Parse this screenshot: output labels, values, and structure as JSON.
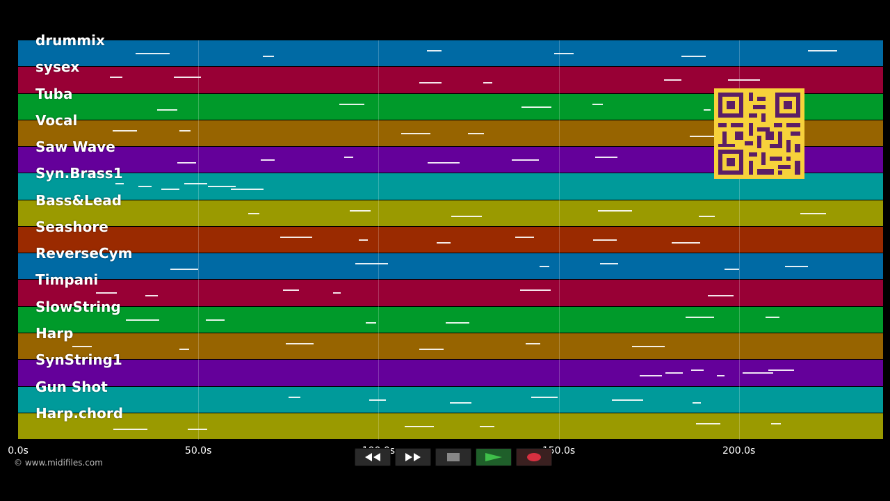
{
  "player": {
    "tracks": [
      {
        "name": "drummix",
        "color": "#006aa4"
      },
      {
        "name": "sysex",
        "color": "#980035"
      },
      {
        "name": "Tuba",
        "color": "#009a2a"
      },
      {
        "name": "Vocal",
        "color": "#976400"
      },
      {
        "name": "Saw Wave",
        "color": "#64009a"
      },
      {
        "name": "Syn.Brass1",
        "color": "#009a9a"
      },
      {
        "name": "Bass&Lead",
        "color": "#9a9a00"
      },
      {
        "name": "Seashore",
        "color": "#9a2a00"
      },
      {
        "name": "ReverseCym",
        "color": "#006aa4"
      },
      {
        "name": "Timpani",
        "color": "#980035"
      },
      {
        "name": "SlowString",
        "color": "#009a2a"
      },
      {
        "name": "Harp",
        "color": "#976400"
      },
      {
        "name": "SynString1",
        "color": "#64009a"
      },
      {
        "name": "Gun Shot",
        "color": "#009a9a"
      },
      {
        "name": "Harp.chord",
        "color": "#9a9a00"
      }
    ],
    "timeline": {
      "ticks": [
        "0.0s",
        "50.0s",
        "100.0s",
        "150.0s",
        "200.0s"
      ],
      "tick_values": [
        0,
        50,
        100,
        150,
        200
      ],
      "duration_s": 240
    },
    "copyright": "© www.midifiles.com",
    "controls": [
      {
        "name": "rewind-button",
        "icon": "rewind-icon"
      },
      {
        "name": "fast-forward-button",
        "icon": "fast-forward-icon"
      },
      {
        "name": "stop-button",
        "icon": "stop-icon"
      },
      {
        "name": "play-button",
        "icon": "play-icon"
      },
      {
        "name": "record-button",
        "icon": "record-icon"
      }
    ],
    "accent_qr": "#f7d23b",
    "qr_icon": "qr-code-icon"
  }
}
